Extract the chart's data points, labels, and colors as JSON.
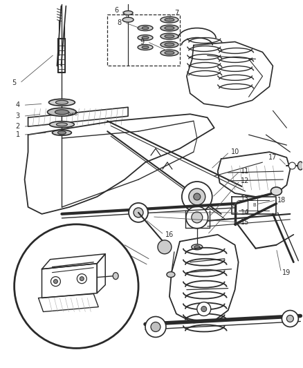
{
  "bg_color": "#ffffff",
  "fig_width": 4.38,
  "fig_height": 5.33,
  "dpi": 100,
  "line_color": "#2a2a2a",
  "line_width": 0.9,
  "label_fontsize": 7.0
}
